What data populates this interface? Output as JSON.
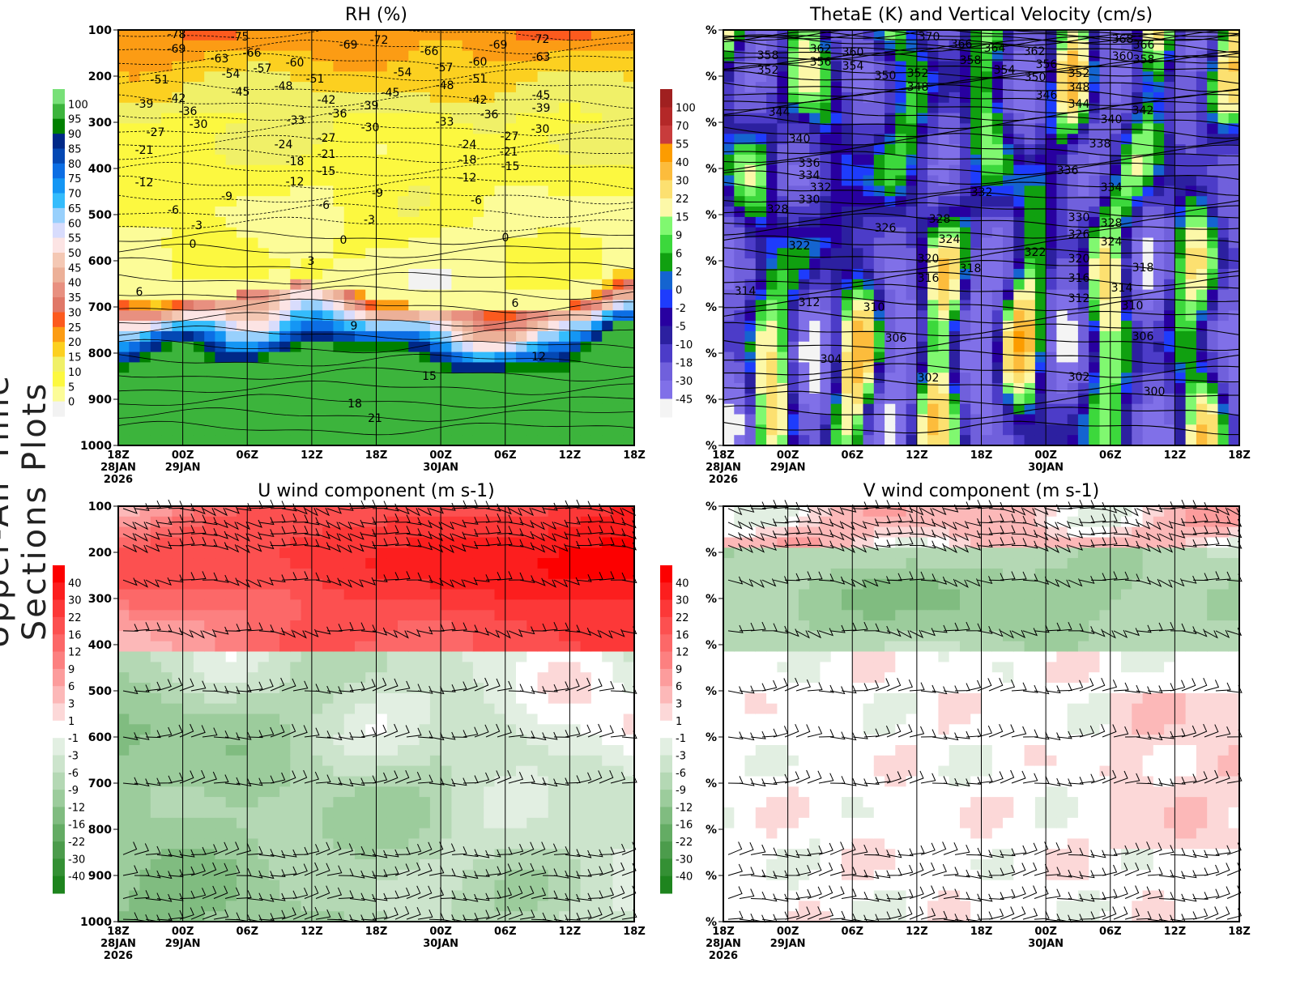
{
  "side_title": "Upper-Air Time Sections Plots",
  "time_ticks": [
    [
      "18Z",
      "28JAN",
      "2026"
    ],
    [
      "00Z",
      "29JAN",
      ""
    ],
    [
      "06Z",
      "",
      ""
    ],
    [
      "12Z",
      "",
      ""
    ],
    [
      "18Z",
      "",
      ""
    ],
    [
      "00Z",
      "30JAN",
      ""
    ],
    [
      "06Z",
      "",
      ""
    ],
    [
      "12Z",
      "",
      ""
    ],
    [
      "18Z",
      "",
      ""
    ]
  ],
  "pressure_ticks": [
    "100",
    "200",
    "300",
    "400",
    "500",
    "600",
    "700",
    "800",
    "900",
    "1000"
  ],
  "chart_data": [
    {
      "id": "rh",
      "type": "heatmap",
      "title": "RH (%)",
      "ytick_labels": [
        "100",
        "200",
        "300",
        "400",
        "500",
        "600",
        "700",
        "800",
        "900",
        "1000"
      ],
      "ylim": [
        100,
        1000
      ],
      "colorbar_labels": [
        "100",
        "95",
        "90",
        "85",
        "80",
        "75",
        "70",
        "65",
        "60",
        "55",
        "50",
        "45",
        "40",
        "35",
        "30",
        "25",
        "20",
        "15",
        "10",
        "5",
        "0"
      ],
      "colorbar_colors": [
        "#78e078",
        "#3cb43c",
        "#008000",
        "#002888",
        "#0448b4",
        "#0c6ee4",
        "#1496f4",
        "#34bcfc",
        "#98d0fc",
        "#d8dcfc",
        "#fce4e4",
        "#f4c8b4",
        "#ecb098",
        "#e89080",
        "#e07868",
        "#fc5a1e",
        "#fc9c14",
        "#fcd020",
        "#f0f068",
        "#fcf840",
        "#fcfc98",
        "#f2f2f2"
      ],
      "contour_labels": [
        "-78",
        "-75",
        "-69",
        "-66",
        "-63",
        "-57",
        "-60",
        "-54",
        "-51",
        "-48",
        "-45",
        "-51",
        "-69",
        "-72",
        "-66",
        "-69",
        "-72",
        "-63",
        "-57",
        "-60",
        "-54",
        "-51",
        "-48",
        "-45",
        "-45",
        "-42",
        "-39",
        "-36",
        "-30",
        "-33",
        "-42",
        "-36",
        "-39",
        "-30",
        "-33",
        "-39",
        "-42",
        "-36",
        "-30",
        "-27",
        "-21",
        "-27",
        "-24",
        "-21",
        "-18",
        "-15",
        "-12",
        "-24",
        "-21",
        "-18",
        "-15",
        "-27",
        "-12",
        "-12",
        "-9",
        "-6",
        "-9",
        "-6",
        "-6",
        "-3",
        "-3",
        "0",
        "0",
        "0",
        "3",
        "6",
        "6",
        "9",
        "12",
        "15",
        "18",
        "21"
      ]
    },
    {
      "id": "thetae",
      "type": "heatmap",
      "title": "ThetaE (K) and Vertical Velocity (cm/s)",
      "ytick_labels": [
        "%",
        "%",
        "%",
        "%",
        "%",
        "%",
        "%",
        "%",
        "%",
        "%"
      ],
      "colorbar_labels": [
        "100",
        "70",
        "55",
        "40",
        "30",
        "22",
        "15",
        "9",
        "6",
        "2",
        "0",
        "-2",
        "-5",
        "-10",
        "-18",
        "-30",
        "-45"
      ],
      "colorbar_colors": [
        "#a02020",
        "#b42828",
        "#c83c3c",
        "#fc9c00",
        "#fcbc3c",
        "#fce070",
        "#fcf8a8",
        "#80f870",
        "#3cd83c",
        "#10a010",
        "#1464d0",
        "#1e3cfc",
        "#2800a0",
        "#2c20a0",
        "#4c3cc8",
        "#7060dc",
        "#8070e8",
        "#f4f4f4"
      ],
      "contour_labels": [
        "370",
        "368",
        "366",
        "366",
        "364",
        "362",
        "360",
        "362",
        "360",
        "358",
        "358",
        "356",
        "354",
        "358",
        "356",
        "354",
        "352",
        "352",
        "350",
        "350",
        "352",
        "348",
        "348",
        "346",
        "344",
        "342",
        "344",
        "340",
        "340",
        "338",
        "336",
        "336",
        "334",
        "334",
        "332",
        "332",
        "330",
        "330",
        "328",
        "328",
        "328",
        "326",
        "326",
        "324",
        "324",
        "322",
        "322",
        "320",
        "320",
        "318",
        "318",
        "316",
        "316",
        "314",
        "314",
        "312",
        "312",
        "310",
        "310",
        "306",
        "306",
        "304",
        "302",
        "302",
        "300"
      ]
    },
    {
      "id": "u",
      "type": "heatmap",
      "title": "U wind component (m s-1)",
      "ytick_labels": [
        "100",
        "200",
        "300",
        "400",
        "500",
        "600",
        "700",
        "800",
        "900",
        "1000"
      ],
      "colorbar_labels": [
        "40",
        "30",
        "22",
        "16",
        "12",
        "9",
        "6",
        "3",
        "1",
        "-1",
        "-3",
        "-6",
        "-9",
        "-12",
        "-16",
        "-22",
        "-30",
        "-40"
      ],
      "colorbar_colors": [
        "#fc0000",
        "#fc1e1e",
        "#fc3838",
        "#fc5050",
        "#fc6868",
        "#fc8080",
        "#fc9c9c",
        "#fcb8b8",
        "#fcd8d8",
        "#ffffff",
        "#e2efe2",
        "#cce4cc",
        "#b4d8b4",
        "#9ccc9c",
        "#80bc80",
        "#64ac64",
        "#4c9c4c",
        "#349034",
        "#1e841e"
      ]
    },
    {
      "id": "v",
      "type": "heatmap",
      "title": "V wind component (m s-1)",
      "ytick_labels": [
        "%",
        "%",
        "%",
        "%",
        "%",
        "%",
        "%",
        "%",
        "%",
        "%"
      ],
      "colorbar_labels": [
        "40",
        "30",
        "22",
        "16",
        "12",
        "9",
        "6",
        "3",
        "1",
        "-1",
        "-3",
        "-6",
        "-9",
        "-12",
        "-16",
        "-22",
        "-30",
        "-40"
      ],
      "colorbar_colors": [
        "#fc0000",
        "#fc1e1e",
        "#fc3838",
        "#fc5050",
        "#fc6868",
        "#fc8080",
        "#fc9c9c",
        "#fcb8b8",
        "#fcd8d8",
        "#ffffff",
        "#e2efe2",
        "#cce4cc",
        "#b4d8b4",
        "#9ccc9c",
        "#80bc80",
        "#64ac64",
        "#4c9c4c",
        "#349034",
        "#1e841e"
      ]
    }
  ]
}
